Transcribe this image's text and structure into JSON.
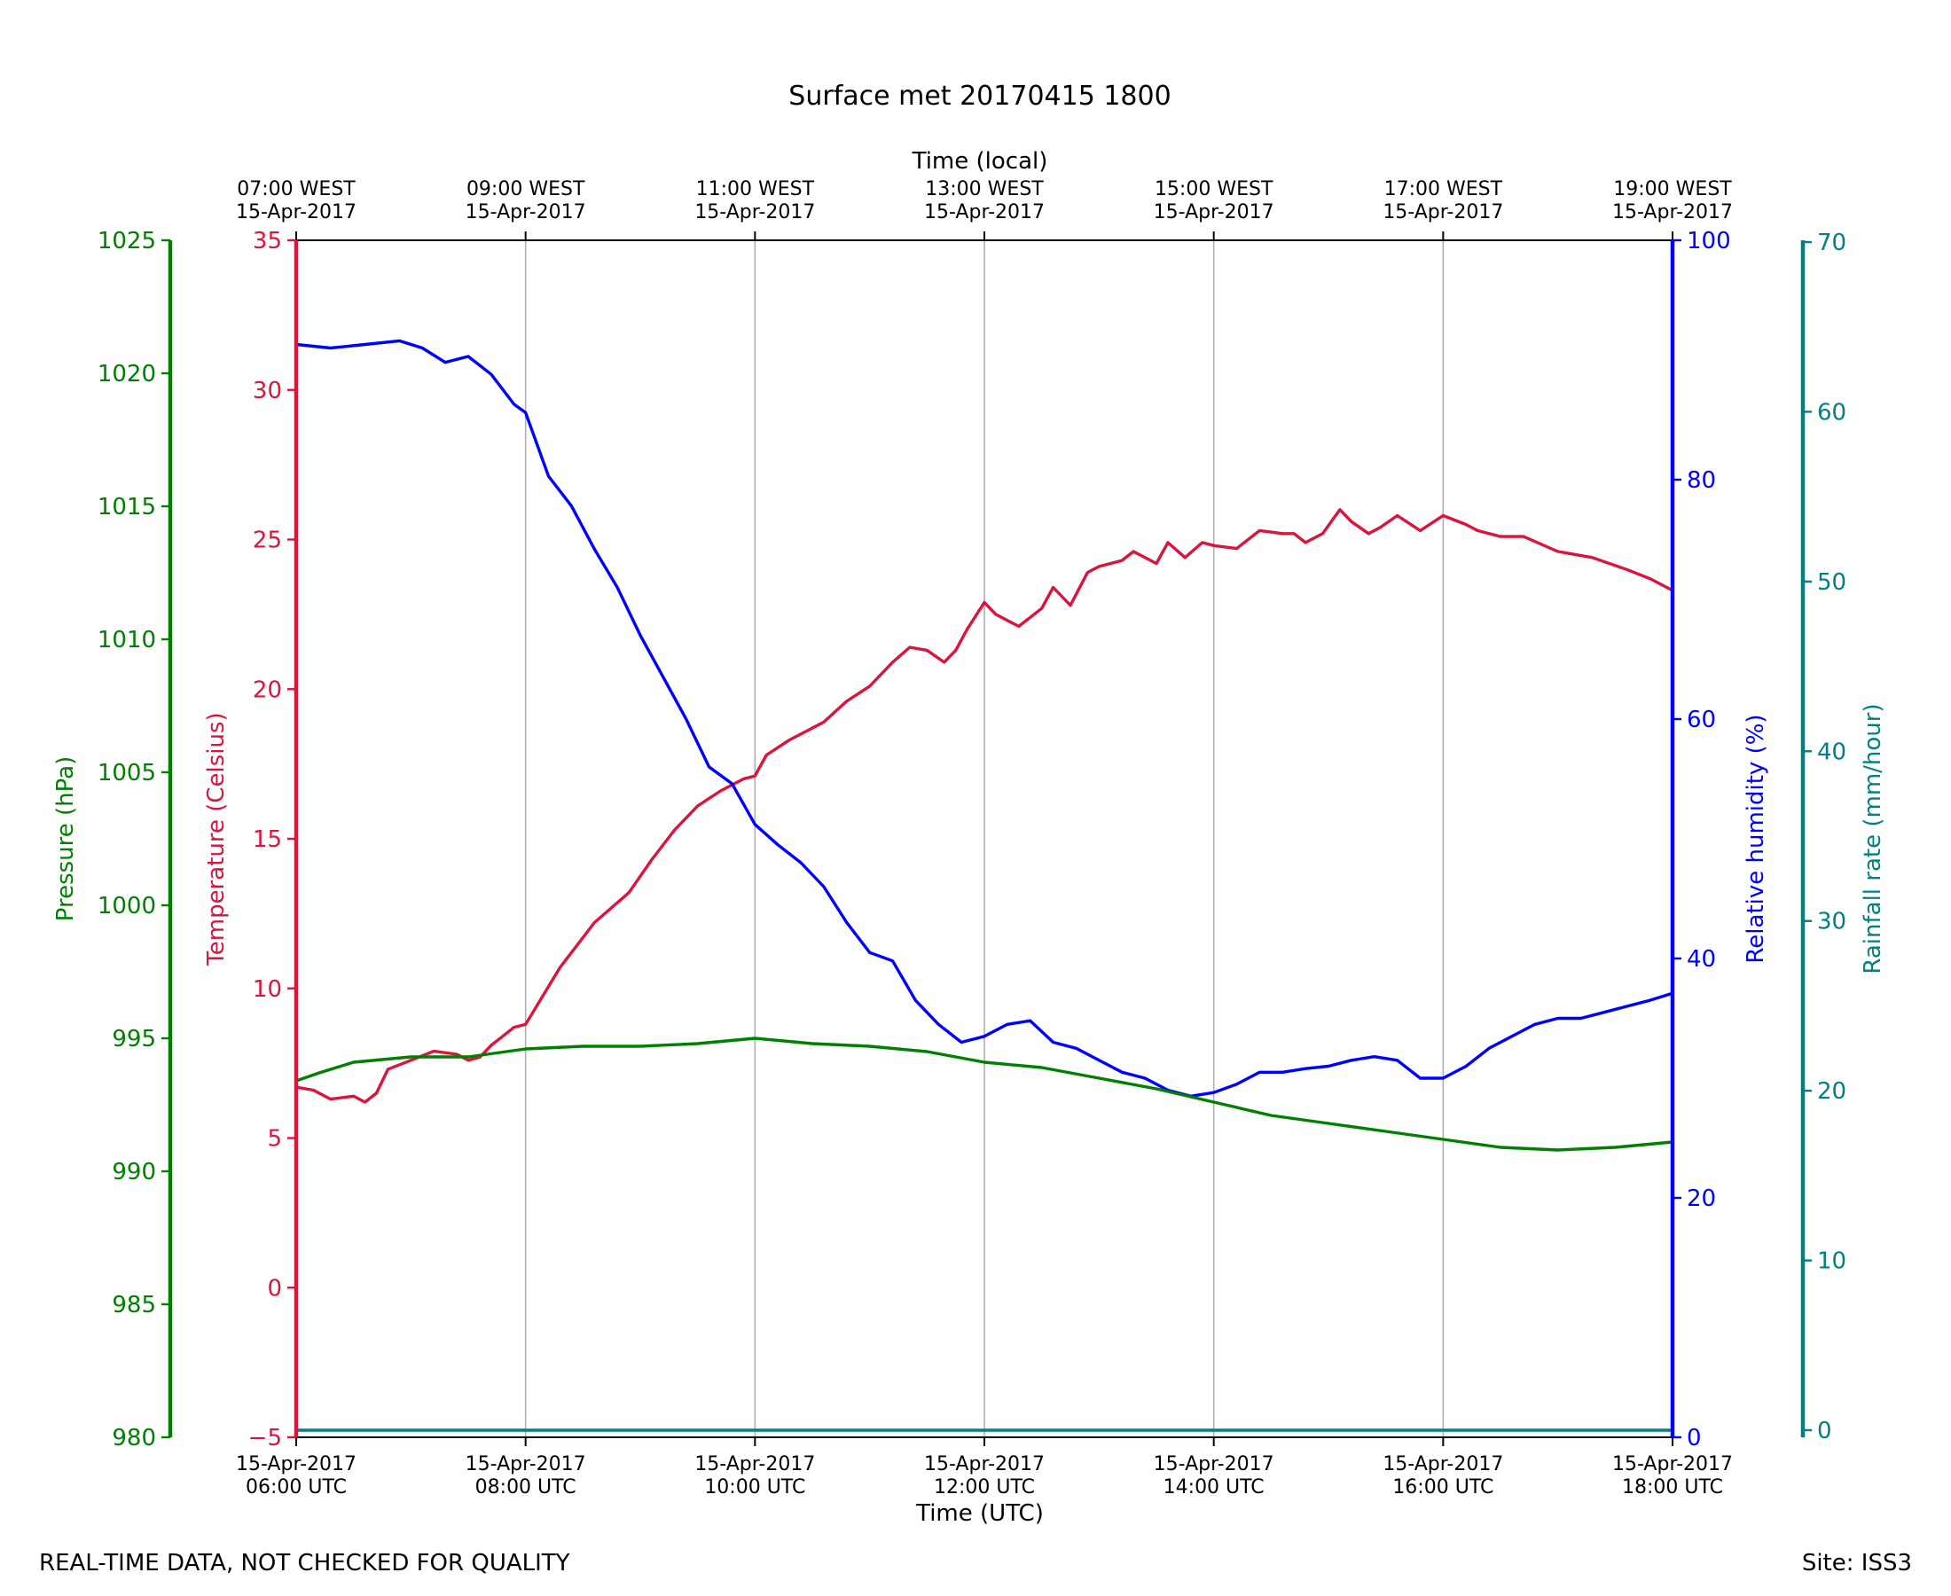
{
  "chart_data": {
    "type": "line",
    "title": "Surface met 20170415 1800",
    "xlabel": "Time (UTC)",
    "top_xlabel": "Time (local)",
    "x_unit": "hours UTC on 15-Apr-2017",
    "xlim": [
      6,
      18
    ],
    "xticks": [
      {
        "value": 6,
        "date": "15-Apr-2017",
        "utc": "06:00 UTC",
        "local": "07:00 WEST"
      },
      {
        "value": 8,
        "date": "15-Apr-2017",
        "utc": "08:00 UTC",
        "local": "09:00 WEST"
      },
      {
        "value": 10,
        "date": "15-Apr-2017",
        "utc": "10:00 UTC",
        "local": "11:00 WEST"
      },
      {
        "value": 12,
        "date": "15-Apr-2017",
        "utc": "12:00 UTC",
        "local": "13:00 WEST"
      },
      {
        "value": 14,
        "date": "15-Apr-2017",
        "utc": "14:00 UTC",
        "local": "15:00 WEST"
      },
      {
        "value": 16,
        "date": "15-Apr-2017",
        "utc": "16:00 UTC",
        "local": "17:00 WEST"
      },
      {
        "value": 18,
        "date": "15-Apr-2017",
        "utc": "18:00 UTC",
        "local": "19:00 WEST"
      }
    ],
    "grid": "vertical",
    "axes": [
      {
        "id": "pressure",
        "label": "Pressure (hPa)",
        "color": "#008000",
        "ylim": [
          980,
          1025
        ],
        "ticks": [
          980,
          985,
          990,
          995,
          1000,
          1005,
          1010,
          1015,
          1020,
          1025
        ],
        "tick_labels": [
          "980",
          "985",
          "990",
          "995",
          "1000",
          "1005",
          "1010",
          "1015",
          "1020",
          "1025"
        ],
        "side": "left-outer"
      },
      {
        "id": "temperature",
        "label": "Temperature (Celsius)",
        "color": "#dc143c",
        "ylim": [
          -5,
          35
        ],
        "ticks": [
          -5,
          0,
          5,
          10,
          15,
          20,
          25,
          30,
          35
        ],
        "tick_labels": [
          "−5",
          "0",
          "5",
          "10",
          "15",
          "20",
          "25",
          "30",
          "35"
        ],
        "side": "left"
      },
      {
        "id": "humidity",
        "label": "Relative humidity (%)",
        "color": "#0000ff",
        "ylim": [
          0,
          100
        ],
        "ticks": [
          0,
          20,
          40,
          60,
          80,
          100
        ],
        "tick_labels": [
          "0",
          "20",
          "40",
          "60",
          "80",
          "100"
        ],
        "side": "right"
      },
      {
        "id": "rainfall",
        "label": "Rainfall rate (mm/hour)",
        "color": "#008080",
        "ylim": [
          0,
          70
        ],
        "ticks": [
          0,
          10,
          20,
          30,
          40,
          50,
          60,
          70
        ],
        "tick_labels": [
          "0",
          "10",
          "20",
          "30",
          "40",
          "50",
          "60",
          "70"
        ],
        "side": "right-outer"
      }
    ],
    "series": [
      {
        "name": "Temperature",
        "axis": "temperature",
        "color": "#dc143c",
        "x": [
          6.0,
          6.15,
          6.3,
          6.5,
          6.6,
          6.7,
          6.8,
          7.0,
          7.2,
          7.4,
          7.5,
          7.6,
          7.7,
          7.8,
          7.9,
          8.0,
          8.3,
          8.6,
          8.9,
          9.1,
          9.3,
          9.5,
          9.7,
          9.9,
          10.0,
          10.1,
          10.3,
          10.6,
          10.8,
          11.0,
          11.2,
          11.35,
          11.5,
          11.65,
          11.75,
          11.85,
          12.0,
          12.1,
          12.3,
          12.4,
          12.5,
          12.6,
          12.75,
          12.9,
          13.0,
          13.2,
          13.3,
          13.5,
          13.6,
          13.75,
          13.9,
          14.0,
          14.2,
          14.4,
          14.6,
          14.7,
          14.8,
          14.95,
          15.1,
          15.2,
          15.35,
          15.45,
          15.6,
          15.8,
          16.0,
          16.2,
          16.3,
          16.5,
          16.7,
          17.0,
          17.3,
          17.6,
          17.8,
          18.0
        ],
        "values": [
          6.7,
          6.6,
          6.3,
          6.4,
          6.2,
          6.5,
          7.3,
          7.6,
          7.9,
          7.8,
          7.6,
          7.7,
          8.1,
          8.4,
          8.7,
          8.8,
          10.7,
          12.2,
          13.2,
          14.3,
          15.3,
          16.1,
          16.6,
          17.0,
          17.1,
          17.8,
          18.3,
          18.9,
          19.6,
          20.1,
          20.9,
          21.4,
          21.3,
          20.9,
          21.3,
          22.0,
          22.9,
          22.5,
          22.1,
          22.4,
          22.7,
          23.4,
          22.8,
          23.9,
          24.1,
          24.3,
          24.6,
          24.2,
          24.9,
          24.4,
          24.9,
          24.8,
          24.7,
          25.3,
          25.2,
          25.2,
          24.9,
          25.2,
          26.0,
          25.6,
          25.2,
          25.4,
          25.8,
          25.3,
          25.8,
          25.5,
          25.3,
          25.1,
          25.1,
          24.6,
          24.4,
          24.0,
          23.7,
          23.3
        ]
      },
      {
        "name": "Relative humidity",
        "axis": "humidity",
        "color": "#0000ff",
        "x": [
          6.0,
          6.3,
          6.6,
          6.9,
          7.1,
          7.3,
          7.5,
          7.7,
          7.9,
          8.0,
          8.2,
          8.4,
          8.6,
          8.8,
          9.0,
          9.2,
          9.4,
          9.6,
          9.8,
          10.0,
          10.2,
          10.4,
          10.6,
          10.8,
          11.0,
          11.2,
          11.4,
          11.6,
          11.8,
          12.0,
          12.2,
          12.4,
          12.6,
          12.8,
          13.0,
          13.2,
          13.4,
          13.6,
          13.8,
          14.0,
          14.2,
          14.4,
          14.6,
          14.8,
          15.0,
          15.2,
          15.4,
          15.6,
          15.8,
          16.0,
          16.2,
          16.4,
          16.6,
          16.8,
          17.0,
          17.2,
          17.4,
          17.6,
          17.8,
          18.0
        ],
        "values": [
          91.3,
          91.0,
          91.3,
          91.6,
          91.0,
          89.8,
          90.3,
          88.8,
          86.3,
          85.6,
          80.3,
          77.8,
          74.2,
          71.0,
          67.0,
          63.5,
          60.0,
          56.0,
          54.6,
          51.2,
          49.5,
          48.0,
          46.0,
          43.0,
          40.5,
          39.8,
          36.5,
          34.5,
          33.0,
          33.5,
          34.5,
          34.8,
          33.0,
          32.5,
          31.5,
          30.5,
          30.0,
          29.0,
          28.5,
          28.8,
          29.5,
          30.5,
          30.5,
          30.8,
          31.0,
          31.5,
          31.8,
          31.5,
          30.0,
          30.0,
          31.0,
          32.5,
          33.5,
          34.5,
          35.0,
          35.0,
          35.5,
          36.0,
          36.5,
          37.1
        ]
      },
      {
        "name": "Pressure",
        "axis": "pressure",
        "color": "#008000",
        "x": [
          6.0,
          6.2,
          6.5,
          7.0,
          7.5,
          8.0,
          8.5,
          9.0,
          9.5,
          10.0,
          10.5,
          11.0,
          11.5,
          12.0,
          12.5,
          13.0,
          13.5,
          14.0,
          14.5,
          15.0,
          15.5,
          16.0,
          16.5,
          17.0,
          17.5,
          18.0
        ],
        "values": [
          993.4,
          993.7,
          994.1,
          994.3,
          994.3,
          994.6,
          994.7,
          994.7,
          994.8,
          995.0,
          994.8,
          994.7,
          994.5,
          994.1,
          993.9,
          993.5,
          993.1,
          992.6,
          992.1,
          991.8,
          991.5,
          991.2,
          990.9,
          990.8,
          990.9,
          991.1
        ]
      },
      {
        "name": "Rainfall rate",
        "axis": "rainfall",
        "color": "#008080",
        "x": [
          6.0,
          18.0
        ],
        "values": [
          0,
          0
        ]
      }
    ]
  },
  "footer": {
    "left": "REAL-TIME DATA, NOT CHECKED FOR QUALITY",
    "right": "Site: ISS3"
  }
}
